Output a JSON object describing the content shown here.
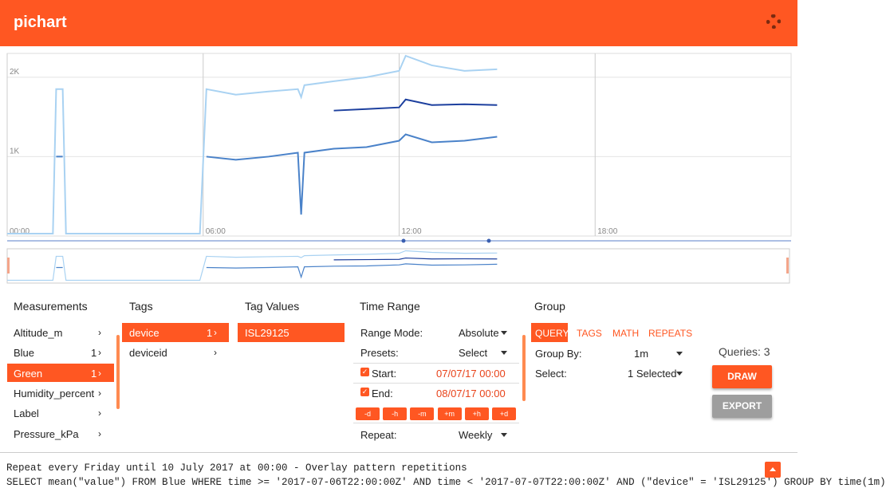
{
  "header": {
    "title": "pichart"
  },
  "chart_data": {
    "type": "line",
    "x": [
      0,
      1.4,
      1.5,
      1.7,
      1.8,
      5.9,
      6.1,
      7,
      8,
      8.9,
      9,
      9.1,
      10,
      11,
      12,
      12.2,
      13,
      14,
      15
    ],
    "series": [
      {
        "color": "#a9d2f2",
        "values": [
          30,
          30,
          1850,
          1850,
          30,
          30,
          1850,
          1780,
          1820,
          1850,
          1750,
          1900,
          1950,
          2000,
          2080,
          2270,
          2150,
          2080,
          2100
        ]
      },
      {
        "color": "#4a82c9",
        "values": [
          null,
          null,
          1000,
          1000,
          null,
          null,
          1000,
          960,
          1000,
          1050,
          270,
          1050,
          1100,
          1120,
          1200,
          1280,
          1180,
          1200,
          1250
        ]
      },
      {
        "color": "#1c3f9e",
        "values": [
          null,
          null,
          null,
          null,
          null,
          null,
          null,
          null,
          null,
          null,
          null,
          null,
          1580,
          1600,
          1620,
          1720,
          1650,
          1660,
          1650
        ]
      }
    ],
    "xlim": [
      0,
      24
    ],
    "ylim": [
      0,
      2300
    ],
    "xticks": [
      {
        "value": 0,
        "label": "00:00"
      },
      {
        "value": 6,
        "label": "06:00"
      },
      {
        "value": 12,
        "label": "12:00"
      },
      {
        "value": 18,
        "label": "18:00"
      }
    ],
    "yticks": [
      {
        "value": 1000,
        "label": "1K"
      },
      {
        "value": 2000,
        "label": "2K"
      }
    ],
    "grid": true
  },
  "measurements": {
    "title": "Measurements",
    "items": [
      {
        "name": "Altitude_m"
      },
      {
        "name": "Blue",
        "count": "1"
      },
      {
        "name": "Green",
        "count": "1"
      },
      {
        "name": "Humidity_percent"
      },
      {
        "name": "Label"
      },
      {
        "name": "Pressure_kPa"
      }
    ]
  },
  "tags": {
    "title": "Tags",
    "items": [
      {
        "name": "device",
        "count": "1"
      },
      {
        "name": "deviceid"
      }
    ]
  },
  "tag_values": {
    "title": "Tag Values",
    "items": [
      "ISL29125"
    ]
  },
  "time_range": {
    "title": "Time Range",
    "range_mode": {
      "label": "Range Mode:",
      "value": "Absolute"
    },
    "presets": {
      "label": "Presets:",
      "value": "Select"
    },
    "start": {
      "label": "Start:",
      "value": "07/07/17 00:00"
    },
    "end": {
      "label": "End:",
      "value": "08/07/17 00:00"
    },
    "buttons": [
      "-d",
      "-h",
      "-m",
      "+m",
      "+h",
      "+d"
    ],
    "repeat": {
      "label": "Repeat:",
      "value": "Weekly"
    }
  },
  "group": {
    "title": "Group",
    "tabs": [
      "QUERY",
      "TAGS",
      "MATH",
      "REPEATS"
    ],
    "group_by": {
      "label": "Group By:",
      "value": "1m"
    },
    "select": {
      "label": "Select:",
      "value": "1 Selected"
    },
    "queries": "Queries: 3",
    "draw": "DRAW",
    "export": "EXPORT"
  },
  "footer": {
    "lines": [
      "Repeat every Friday until 10 July 2017 at 00:00 - Overlay pattern repetitions",
      "SELECT mean(\"value\") FROM Blue WHERE time >= '2017-07-06T22:00:00Z' AND time < '2017-07-07T22:00:00Z' AND (\"device\" = 'ISL29125') GROUP BY time(1m)"
    ]
  }
}
